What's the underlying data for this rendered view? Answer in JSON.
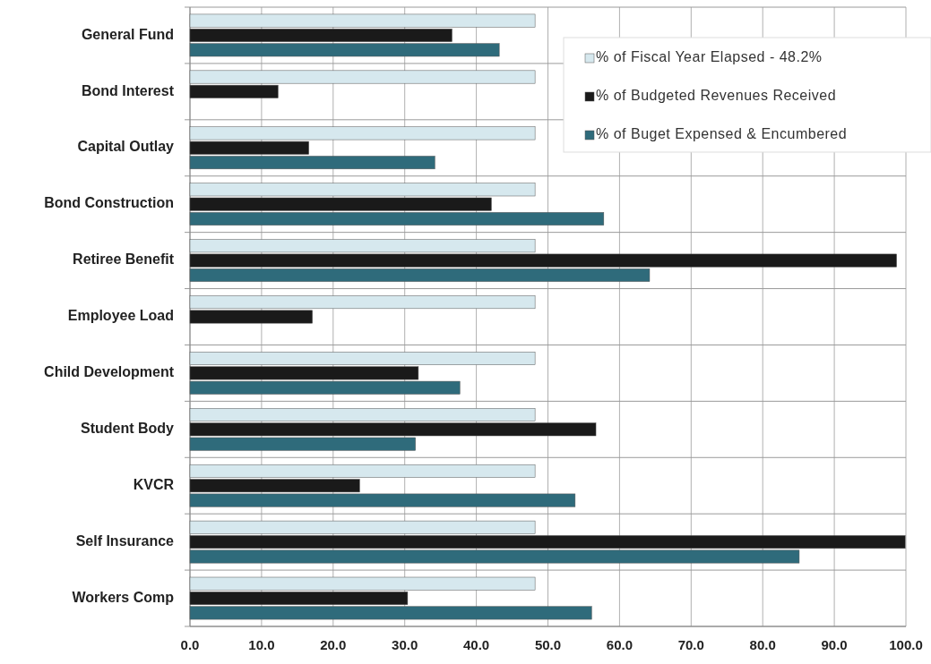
{
  "chart_data": {
    "type": "bar",
    "orientation": "horizontal",
    "categories": [
      "General Fund",
      "Bond Interest",
      "Capital Outlay",
      "Bond Construction",
      "Retiree Benefit",
      "Employee Load",
      "Child Development",
      "Student Body",
      "KVCR",
      "Self Insurance",
      "Workers Comp"
    ],
    "series": [
      {
        "name": "% of Fiscal Year Elapsed - 48.2%",
        "color": "#d6e8ee",
        "values": [
          48.2,
          48.2,
          48.2,
          48.2,
          48.2,
          48.2,
          48.2,
          48.2,
          48.2,
          48.2,
          48.2
        ]
      },
      {
        "name": "% of Budgeted Revenues Received",
        "color": "#1a1a1a",
        "values": [
          36.6,
          12.3,
          16.6,
          42.1,
          98.7,
          17.1,
          31.9,
          56.7,
          23.7,
          99.9,
          30.4
        ]
      },
      {
        "name": "% of Buget Expensed & Encumbered",
        "color": "#2f6b7b",
        "values": [
          43.2,
          null,
          34.2,
          57.8,
          64.2,
          null,
          37.7,
          31.5,
          53.8,
          85.1,
          56.1
        ]
      }
    ],
    "xlim": [
      0,
      100
    ],
    "xticks": [
      {
        "value": 0,
        "label": "0.0"
      },
      {
        "value": 10,
        "label": "10.0"
      },
      {
        "value": 20,
        "label": "20.0"
      },
      {
        "value": 30,
        "label": "30.0"
      },
      {
        "value": 40,
        "label": "40.0"
      },
      {
        "value": 50,
        "label": "50.0"
      },
      {
        "value": 60,
        "label": "60.0"
      },
      {
        "value": 70,
        "label": "70.0"
      },
      {
        "value": 80,
        "label": "80.0"
      },
      {
        "value": 90,
        "label": "90.0"
      },
      {
        "value": 100,
        "label": "100.0"
      }
    ],
    "grid": true,
    "legend": "top right"
  }
}
